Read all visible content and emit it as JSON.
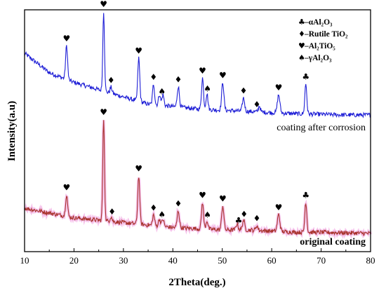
{
  "chart_data": {
    "type": "line",
    "xlabel": "2Theta(deg.)",
    "ylabel": "Intensity(a.u)",
    "xlim": [
      10,
      80
    ],
    "x_ticks": [
      10,
      20,
      30,
      40,
      50,
      60,
      70,
      80
    ],
    "y_range": [
      0,
      100
    ],
    "y_ticks_labeled": false,
    "grid": false,
    "legend_position": "top-right",
    "legend": [
      {
        "symbol": "♣",
        "text": "–αAl₂O₃"
      },
      {
        "symbol": "♦",
        "text": "–Rutile TiO₂"
      },
      {
        "symbol": "♥",
        "text": "–Al₂TiO₅"
      },
      {
        "symbol": "♠",
        "text": "–γAl₂O₃"
      }
    ],
    "series": [
      {
        "name": "coating after corrosion",
        "color": "#1f1fd6",
        "baseline": [
          [
            10,
            82
          ],
          [
            15,
            74
          ],
          [
            20,
            70
          ],
          [
            25,
            67
          ],
          [
            30,
            64
          ],
          [
            35,
            61
          ],
          [
            40,
            60
          ],
          [
            45,
            59
          ],
          [
            50,
            58.5
          ],
          [
            55,
            58
          ],
          [
            60,
            57.5
          ],
          [
            65,
            57
          ],
          [
            70,
            56.8
          ],
          [
            75,
            56.5
          ],
          [
            80,
            56.5
          ]
        ],
        "peaks": [
          {
            "x": 18.5,
            "y": 14,
            "w": 0.2
          },
          {
            "x": 26.0,
            "y": 33,
            "w": 0.17
          },
          {
            "x": 27.5,
            "y": 2.5,
            "w": 0.2
          },
          {
            "x": 33.1,
            "y": 18,
            "w": 0.2
          },
          {
            "x": 36.1,
            "y": 8.5,
            "w": 0.2
          },
          {
            "x": 37.3,
            "y": 4.5,
            "w": 0.2
          },
          {
            "x": 38.0,
            "y": 4.5,
            "w": 0.2
          },
          {
            "x": 41.1,
            "y": 8.5,
            "w": 0.22
          },
          {
            "x": 46.0,
            "y": 13,
            "w": 0.2
          },
          {
            "x": 46.9,
            "y": 6.5,
            "w": 0.2
          },
          {
            "x": 50.1,
            "y": 11.5,
            "w": 0.22
          },
          {
            "x": 54.3,
            "y": 5.5,
            "w": 0.22
          },
          {
            "x": 57.5,
            "y": 2.5,
            "w": 0.2
          },
          {
            "x": 61.4,
            "y": 7.5,
            "w": 0.25
          },
          {
            "x": 66.9,
            "y": 12.5,
            "w": 0.2
          }
        ],
        "markers": [
          {
            "symbol": "♥",
            "x": 18.5
          },
          {
            "symbol": "♥",
            "x": 26.0
          },
          {
            "symbol": "♦",
            "x": 27.5
          },
          {
            "symbol": "♥",
            "x": 33.1
          },
          {
            "symbol": "♦",
            "x": 36.1
          },
          {
            "symbol": "♠",
            "x": 37.8
          },
          {
            "symbol": "♦",
            "x": 41.1
          },
          {
            "symbol": "♥",
            "x": 46.0
          },
          {
            "symbol": "♠",
            "x": 47.0
          },
          {
            "symbol": "♥",
            "x": 50.1
          },
          {
            "symbol": "♦",
            "x": 54.3
          },
          {
            "symbol": "♦",
            "x": 57.0
          },
          {
            "symbol": "♥",
            "x": 61.4
          },
          {
            "symbol": "♣",
            "x": 66.9
          }
        ]
      },
      {
        "name": "original coating",
        "color": "#a8332c",
        "baseline": [
          [
            10,
            18
          ],
          [
            15,
            16
          ],
          [
            20,
            14
          ],
          [
            25,
            13
          ],
          [
            30,
            12
          ],
          [
            35,
            11
          ],
          [
            40,
            10
          ],
          [
            45,
            9.5
          ],
          [
            50,
            9
          ],
          [
            55,
            9
          ],
          [
            60,
            8.5
          ],
          [
            65,
            8
          ],
          [
            70,
            8
          ],
          [
            75,
            7.8
          ],
          [
            80,
            7.5
          ]
        ],
        "peaks": [
          {
            "x": 18.5,
            "y": 9,
            "w": 0.2
          },
          {
            "x": 26.0,
            "y": 42,
            "w": 0.17
          },
          {
            "x": 27.5,
            "y": 2,
            "w": 0.2
          },
          {
            "x": 33.1,
            "y": 20,
            "w": 0.2
          },
          {
            "x": 36.1,
            "y": 4.5,
            "w": 0.2
          },
          {
            "x": 37.3,
            "y": 3,
            "w": 0.2
          },
          {
            "x": 38.0,
            "y": 3,
            "w": 0.2
          },
          {
            "x": 41.1,
            "y": 7,
            "w": 0.22
          },
          {
            "x": 46.0,
            "y": 11,
            "w": 0.2
          },
          {
            "x": 46.9,
            "y": 3.5,
            "w": 0.2
          },
          {
            "x": 50.1,
            "y": 10,
            "w": 0.22
          },
          {
            "x": 53.0,
            "y": 2.5,
            "w": 0.22
          },
          {
            "x": 54.3,
            "y": 4,
            "w": 0.22
          },
          {
            "x": 57.0,
            "y": 2,
            "w": 0.2
          },
          {
            "x": 61.4,
            "y": 7,
            "w": 0.25
          },
          {
            "x": 66.9,
            "y": 12.5,
            "w": 0.2
          }
        ],
        "markers": [
          {
            "symbol": "♥",
            "x": 18.5
          },
          {
            "symbol": "♥",
            "x": 26.0
          },
          {
            "symbol": "♦",
            "x": 27.7
          },
          {
            "symbol": "♥",
            "x": 33.1
          },
          {
            "symbol": "♦",
            "x": 36.1
          },
          {
            "symbol": "♠",
            "x": 37.8
          },
          {
            "symbol": "♦",
            "x": 41.1
          },
          {
            "symbol": "♥",
            "x": 46.0
          },
          {
            "symbol": "♠",
            "x": 47.0
          },
          {
            "symbol": "♥",
            "x": 50.1
          },
          {
            "symbol": "♣",
            "x": 53.3
          },
          {
            "symbol": "♦",
            "x": 54.4
          },
          {
            "symbol": "♦",
            "x": 57.0
          },
          {
            "symbol": "♥",
            "x": 61.4
          },
          {
            "symbol": "♣",
            "x": 66.9
          }
        ]
      }
    ]
  }
}
